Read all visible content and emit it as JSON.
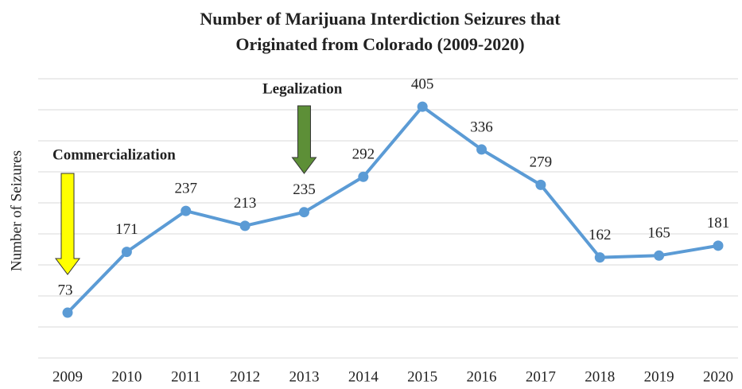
{
  "chart_data": {
    "type": "line",
    "title": [
      "Number of Marijuana Interdiction Seizures that",
      "Originated from Colorado (2009-2020)"
    ],
    "y_label": "Number of Seizures",
    "categories": [
      "2009",
      "2010",
      "2011",
      "2012",
      "2013",
      "2014",
      "2015",
      "2016",
      "2017",
      "2018",
      "2019",
      "2020"
    ],
    "series": [
      {
        "name": "Seizures",
        "color": "#5b9bd5",
        "values": [
          73,
          171,
          237,
          213,
          235,
          292,
          405,
          336,
          279,
          162,
          165,
          181
        ]
      }
    ],
    "ylim": [
      0,
      450
    ],
    "yticks": [
      0,
      50,
      100,
      150,
      200,
      250,
      300,
      350,
      400,
      450
    ],
    "grid": true,
    "annotations": [
      {
        "text": "Commercialization",
        "category": "2009",
        "color": "#ffff00"
      },
      {
        "text": "Legalization",
        "category": "2013",
        "color": "#5d8f37"
      }
    ]
  }
}
